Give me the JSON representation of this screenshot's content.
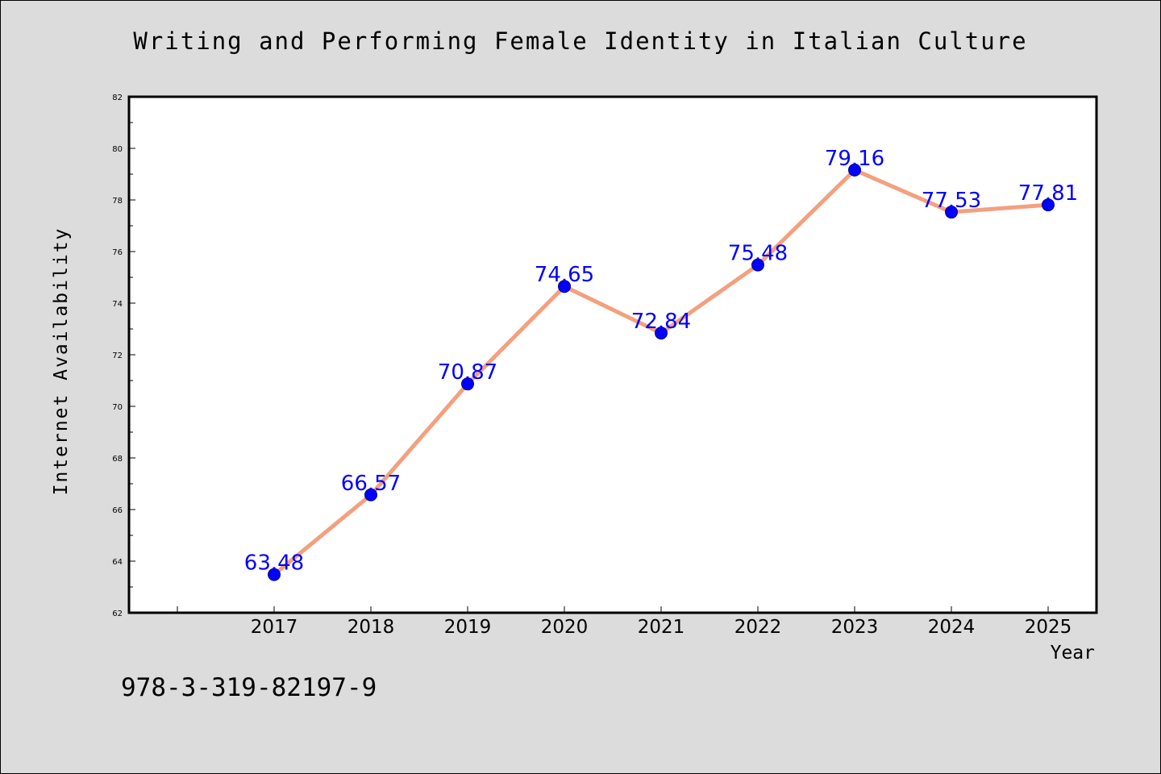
{
  "chart_data": {
    "type": "line",
    "title": "Writing and Performing Female Identity in Italian Culture",
    "xlabel": "Year",
    "ylabel": "Internet Availability",
    "categories": [
      "2017",
      "2018",
      "2019",
      "2020",
      "2021",
      "2022",
      "2023",
      "2024",
      "2025"
    ],
    "values": [
      63.48,
      66.57,
      70.87,
      74.65,
      72.84,
      75.48,
      79.16,
      77.53,
      77.81
    ],
    "data_labels": [
      "63.48",
      "66.57",
      "70.87",
      "74.65",
      "72.84",
      "75.48",
      "79.16",
      "77.53",
      "77.81"
    ],
    "ylim": [
      62,
      82
    ],
    "y_ticks": [
      "62",
      "64",
      "66",
      "68",
      "70",
      "72",
      "74",
      "76",
      "78",
      "80",
      "82"
    ],
    "grid": false,
    "legend": "none",
    "colors": {
      "line": "#f4a07e",
      "marker": "#0000ff",
      "label": "#0000ff",
      "background": "#dcdcdc",
      "plot_area": "#ffffff"
    }
  },
  "footer": {
    "isbn": "978-3-319-82197-9"
  }
}
